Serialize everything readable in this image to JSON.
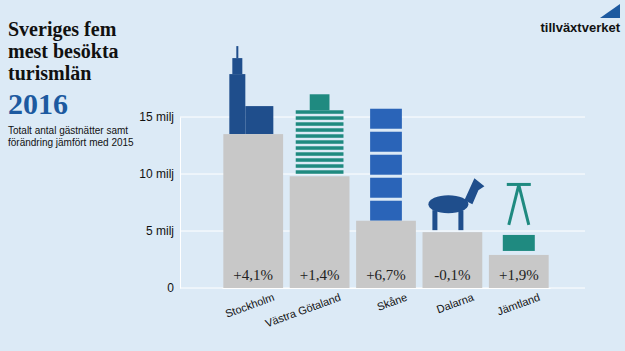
{
  "chart_data": {
    "type": "bar",
    "title": [
      "Sveriges fem",
      "mest besökta",
      "turismlän",
      "2016"
    ],
    "subtitle": [
      "Totalt antal gästnätter samt",
      "förändring jämfört med 2015"
    ],
    "logo": "tillväxtverket",
    "categories": [
      "Stockholm",
      "Västra Götaland",
      "Skåne",
      "Dalarna",
      "Jämtland"
    ],
    "values": [
      13.5,
      9.8,
      5.9,
      4.9,
      2.9
    ],
    "change": [
      4.1,
      1.4,
      6.7,
      -0.1,
      1.9
    ],
    "change_labels": [
      "+4,1%",
      "+1,4%",
      "+6,7%",
      "-0,1%",
      "+1,9%"
    ],
    "color": "#c8c8c8",
    "ylim": [
      0,
      15
    ],
    "yticks": [
      0,
      {
        "value": 5,
        "label": "5 milj"
      },
      {
        "value": 10,
        "label": "10 milj"
      },
      {
        "value": 15,
        "label": "15 milj"
      }
    ],
    "grid": true
  }
}
